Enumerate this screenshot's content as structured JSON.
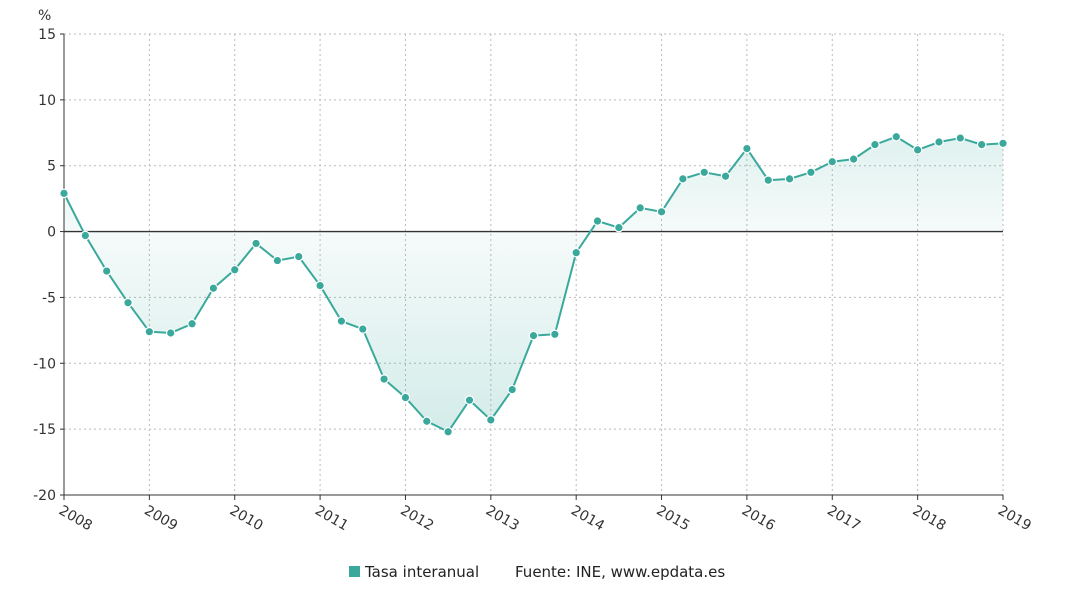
{
  "chart_data": {
    "type": "area",
    "unit_label": "%",
    "ylim": [
      -20,
      15
    ],
    "y_ticks": [
      15,
      10,
      5,
      0,
      -5,
      -10,
      -15,
      -20
    ],
    "xlim": [
      2008,
      2019
    ],
    "x_ticks": [
      "2008",
      "2009",
      "2010",
      "2011",
      "2012",
      "2013",
      "2014",
      "2015",
      "2016",
      "2017",
      "2018",
      "2019"
    ],
    "grid": true,
    "legend_placement": "bottom-center",
    "colors": {
      "line": "#3aa99c",
      "fill": "#3aa99c",
      "zero_line": "#333333",
      "grid": "#bbbbbb"
    },
    "series": [
      {
        "name": "Tasa interanual",
        "points": [
          {
            "x": 2008.0,
            "y": 2.9
          },
          {
            "x": 2008.25,
            "y": -0.3
          },
          {
            "x": 2008.5,
            "y": -3.0
          },
          {
            "x": 2008.75,
            "y": -5.4
          },
          {
            "x": 2009.0,
            "y": -7.6
          },
          {
            "x": 2009.25,
            "y": -7.7
          },
          {
            "x": 2009.5,
            "y": -7.0
          },
          {
            "x": 2009.75,
            "y": -4.3
          },
          {
            "x": 2010.0,
            "y": -2.9
          },
          {
            "x": 2010.25,
            "y": -0.9
          },
          {
            "x": 2010.5,
            "y": -2.2
          },
          {
            "x": 2010.75,
            "y": -1.9
          },
          {
            "x": 2011.0,
            "y": -4.1
          },
          {
            "x": 2011.25,
            "y": -6.8
          },
          {
            "x": 2011.5,
            "y": -7.4
          },
          {
            "x": 2011.75,
            "y": -11.2
          },
          {
            "x": 2012.0,
            "y": -12.6
          },
          {
            "x": 2012.25,
            "y": -14.4
          },
          {
            "x": 2012.5,
            "y": -15.2
          },
          {
            "x": 2012.75,
            "y": -12.8
          },
          {
            "x": 2013.0,
            "y": -14.3
          },
          {
            "x": 2013.25,
            "y": -12.0
          },
          {
            "x": 2013.5,
            "y": -7.9
          },
          {
            "x": 2013.75,
            "y": -7.8
          },
          {
            "x": 2014.0,
            "y": -1.6
          },
          {
            "x": 2014.25,
            "y": 0.8
          },
          {
            "x": 2014.5,
            "y": 0.3
          },
          {
            "x": 2014.75,
            "y": 1.8
          },
          {
            "x": 2015.0,
            "y": 1.5
          },
          {
            "x": 2015.25,
            "y": 4.0
          },
          {
            "x": 2015.5,
            "y": 4.5
          },
          {
            "x": 2015.75,
            "y": 4.2
          },
          {
            "x": 2016.0,
            "y": 6.3
          },
          {
            "x": 2016.25,
            "y": 3.9
          },
          {
            "x": 2016.5,
            "y": 4.0
          },
          {
            "x": 2016.75,
            "y": 4.5
          },
          {
            "x": 2017.0,
            "y": 5.3
          },
          {
            "x": 2017.25,
            "y": 5.5
          },
          {
            "x": 2017.5,
            "y": 6.6
          },
          {
            "x": 2017.75,
            "y": 7.2
          },
          {
            "x": 2018.0,
            "y": 6.2
          },
          {
            "x": 2018.25,
            "y": 6.8
          },
          {
            "x": 2018.5,
            "y": 7.1
          },
          {
            "x": 2018.75,
            "y": 6.6
          },
          {
            "x": 2019.0,
            "y": 6.7
          }
        ]
      }
    ],
    "legend": {
      "series_label": "Tasa interanual",
      "source": "Fuente: INE, www.epdata.es"
    }
  }
}
